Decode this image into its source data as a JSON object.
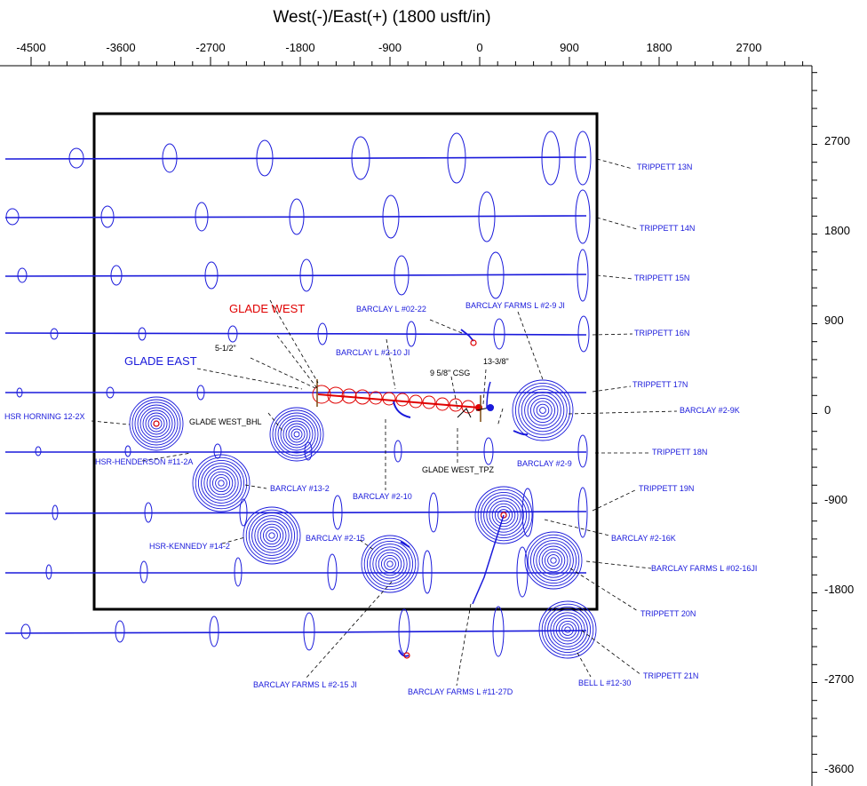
{
  "chart_data": {
    "type": "scatter",
    "title": "West(-)/East(+) (1800 usft/in)",
    "x_axis": {
      "ticks": [
        "-4500",
        "-3600",
        "-2700",
        "-1800",
        "-900",
        "0",
        "900",
        "1800",
        "2700"
      ]
    },
    "y_axis": {
      "ticks": [
        "2700",
        "1800",
        "900",
        "0",
        "-900",
        "-1800",
        "-2700",
        "-3600"
      ]
    },
    "targets": {
      "glade_west": "GLADE WEST",
      "glade_east": "GLADE EAST",
      "glade_west_bhl": "GLADE WEST_BHL",
      "glade_west_tpz": "GLADE WEST_TPZ"
    },
    "casing_labels": {
      "c512": "5-1/2\"",
      "c958": "9 5/8\" CSG",
      "c1338": "13-3/8\""
    },
    "wells": [
      {
        "key": "trippett13n",
        "label": "TRIPPETT 13N"
      },
      {
        "key": "trippett14n",
        "label": "TRIPPETT 14N"
      },
      {
        "key": "trippett15n",
        "label": "TRIPPETT 15N"
      },
      {
        "key": "trippett16n",
        "label": "TRIPPETT 16N"
      },
      {
        "key": "trippett17n",
        "label": "TRIPPETT 17N"
      },
      {
        "key": "trippett18n",
        "label": "TRIPPETT 18N"
      },
      {
        "key": "trippett19n",
        "label": "TRIPPETT 19N"
      },
      {
        "key": "trippett20n",
        "label": "TRIPPETT 20N"
      },
      {
        "key": "trippett21n",
        "label": "TRIPPETT 21N"
      },
      {
        "key": "barclay0222",
        "label": "BARCLAY L #02-22"
      },
      {
        "key": "barclayfarms29",
        "label": "BARCLAY FARMS L #2-9 JI"
      },
      {
        "key": "barclay210ji",
        "label": "BARCLAY L #2-10 JI"
      },
      {
        "key": "barclay29k",
        "label": "BARCLAY #2-9K"
      },
      {
        "key": "barclay29",
        "label": "BARCLAY #2-9"
      },
      {
        "key": "hsrhorning",
        "label": "HSR HORNING 12-2X"
      },
      {
        "key": "hsrhenderson",
        "label": "HSR-HENDERSON #11-2A"
      },
      {
        "key": "barclay132",
        "label": "BARCLAY #13-2"
      },
      {
        "key": "barclay210",
        "label": "BARCLAY #2-10"
      },
      {
        "key": "hsrkennedy",
        "label": "HSR-KENNEDY #14-2"
      },
      {
        "key": "barclay215",
        "label": "BARCLAY #2-15"
      },
      {
        "key": "barclay216k",
        "label": "BARCLAY #2-16K"
      },
      {
        "key": "barclayfarms0216",
        "label": "BARCLAY FARMS L #02-16JI"
      },
      {
        "key": "barclayfarms215",
        "label": "BARCLAY FARMS L #2-15 JI"
      },
      {
        "key": "barclayfarms1127",
        "label": "BARCLAY FARMS L #11-27D"
      },
      {
        "key": "bell1230",
        "label": "BELL L #12-30"
      }
    ],
    "colors": {
      "offset_wells": "#1a1adb",
      "subject_well": "#e00000",
      "lease_boundary": "#000000"
    }
  }
}
